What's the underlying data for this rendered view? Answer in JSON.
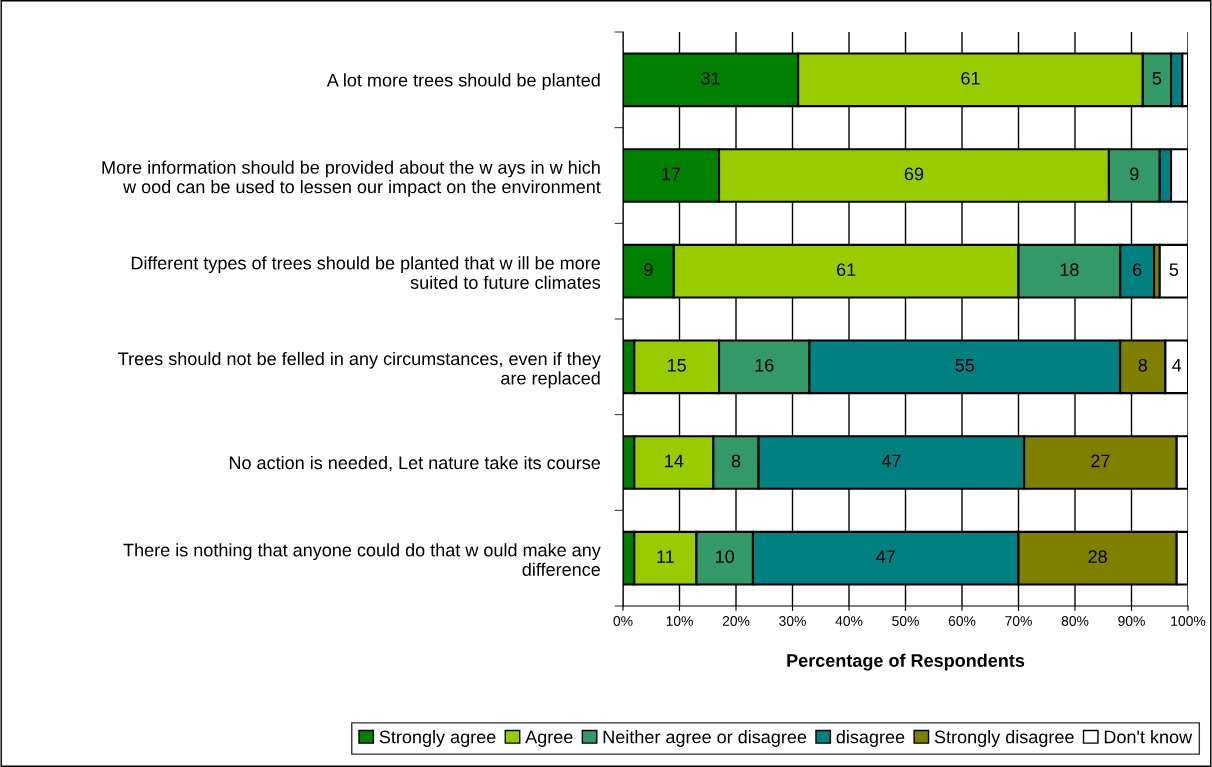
{
  "chart_data": {
    "type": "bar",
    "orientation": "horizontal",
    "stacked": true,
    "categories": [
      "A lot more trees should be planted",
      "More information should be provided about the w ays in w hich\nw ood can be used to lessen our impact on the environment",
      "Different types of trees should be planted that w ill be more\nsuited to future climates",
      "Trees should not be felled in any circumstances, even if they\nare replaced",
      "No action is needed, Let nature take its course",
      "There is nothing that anyone could do that w ould make any\ndifference"
    ],
    "series": [
      {
        "name": "Strongly agree",
        "color": "#008000",
        "values": [
          31,
          17,
          9,
          2,
          2,
          2
        ],
        "value_labels": [
          "31",
          "17",
          "9",
          null,
          null,
          null
        ]
      },
      {
        "name": "Agree",
        "color": "#99cc00",
        "values": [
          61,
          69,
          61,
          15,
          14,
          11
        ],
        "value_labels": [
          "61",
          "69",
          "61",
          "15",
          "14",
          "11"
        ]
      },
      {
        "name": "Neither agree or disagree",
        "color": "#339966",
        "values": [
          5,
          9,
          18,
          16,
          8,
          10
        ],
        "value_labels": [
          "5",
          "9",
          "18",
          "16",
          "8",
          "10"
        ]
      },
      {
        "name": "disagree",
        "color": "#008080",
        "values": [
          2,
          2,
          6,
          55,
          47,
          47
        ],
        "value_labels": [
          null,
          null,
          "6",
          "55",
          "47",
          "47"
        ]
      },
      {
        "name": "Strongly disagree",
        "color": "#808000",
        "values": [
          0,
          0,
          1,
          8,
          27,
          28
        ],
        "value_labels": [
          null,
          null,
          null,
          "8",
          "27",
          "28"
        ]
      },
      {
        "name": "Don't know",
        "color": "#ffffff",
        "values": [
          1,
          3,
          5,
          4,
          2,
          2
        ],
        "value_labels": [
          null,
          null,
          "5",
          "4",
          null,
          null
        ]
      }
    ],
    "xlim": [
      0,
      100
    ],
    "xticks": [
      {
        "value": 0,
        "label": "0%"
      },
      {
        "value": 10,
        "label": "10%"
      },
      {
        "value": 20,
        "label": "20%"
      },
      {
        "value": 30,
        "label": "30%"
      },
      {
        "value": 40,
        "label": "40%"
      },
      {
        "value": 50,
        "label": "50%"
      },
      {
        "value": 60,
        "label": "60%"
      },
      {
        "value": 70,
        "label": "70%"
      },
      {
        "value": 80,
        "label": "80%"
      },
      {
        "value": 90,
        "label": "90%"
      },
      {
        "value": 100,
        "label": "100%"
      }
    ],
    "xlabel": "Percentage of Respondents",
    "grid": "x",
    "legend": "bottom"
  }
}
